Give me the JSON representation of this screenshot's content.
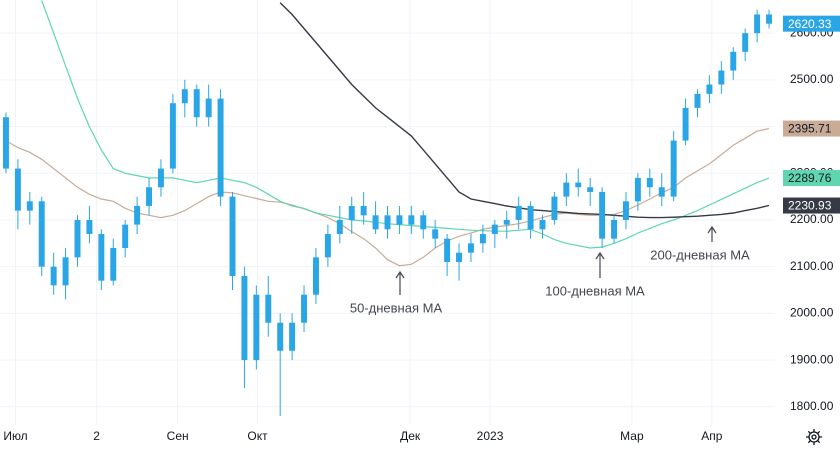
{
  "chart_data": {
    "type": "candlestick",
    "x": [
      0,
      1,
      2,
      3,
      4,
      5,
      6,
      7,
      8,
      9,
      10,
      11,
      12,
      13,
      14,
      15,
      16,
      17,
      18,
      19,
      20,
      21,
      22,
      23,
      24,
      25,
      26,
      27,
      28,
      29,
      30,
      31,
      32,
      33,
      34,
      35,
      36,
      37,
      38,
      39,
      40,
      41,
      42,
      43,
      44,
      45,
      46,
      47,
      48,
      49,
      50,
      51,
      52,
      53,
      54,
      55,
      56,
      57,
      58,
      59,
      60,
      61,
      62,
      63,
      64
    ],
    "candles": {
      "color": "#2aa6e6",
      "open": [
        2420,
        2310,
        2220,
        2240,
        2100,
        2060,
        2120,
        2200,
        2170,
        2070,
        2140,
        2190,
        2230,
        2270,
        2310,
        2450,
        2480,
        2420,
        2460,
        2250,
        2080,
        1900,
        2040,
        1980,
        1920,
        1980,
        2040,
        2120,
        2170,
        2200,
        2230,
        2210,
        2180,
        2210,
        2190,
        2210,
        2180,
        2160,
        2110,
        2130,
        2150,
        2170,
        2190,
        2200,
        2230,
        2180,
        2200,
        2250,
        2280,
        2270,
        2260,
        2160,
        2200,
        2240,
        2290,
        2270,
        2250,
        2370,
        2440,
        2470,
        2490,
        2520,
        2560,
        2600,
        2640
      ],
      "high": [
        2430,
        2330,
        2260,
        2250,
        2130,
        2140,
        2210,
        2230,
        2180,
        2160,
        2200,
        2250,
        2290,
        2330,
        2470,
        2500,
        2490,
        2490,
        2480,
        2260,
        2100,
        2060,
        2080,
        2000,
        2000,
        2060,
        2140,
        2190,
        2230,
        2250,
        2260,
        2240,
        2230,
        2230,
        2230,
        2220,
        2200,
        2170,
        2150,
        2170,
        2190,
        2200,
        2220,
        2250,
        2240,
        2210,
        2260,
        2300,
        2310,
        2290,
        2270,
        2210,
        2260,
        2300,
        2310,
        2300,
        2390,
        2460,
        2480,
        2510,
        2540,
        2570,
        2610,
        2650,
        2650
      ],
      "low": [
        2300,
        2180,
        2190,
        2080,
        2040,
        2030,
        2100,
        2150,
        2050,
        2060,
        2120,
        2170,
        2210,
        2250,
        2300,
        2420,
        2400,
        2400,
        2230,
        2050,
        1840,
        1880,
        1950,
        1780,
        1900,
        1960,
        2020,
        2100,
        2150,
        2170,
        2190,
        2170,
        2160,
        2170,
        2170,
        2160,
        2140,
        2080,
        2070,
        2110,
        2130,
        2140,
        2160,
        2180,
        2160,
        2160,
        2190,
        2230,
        2250,
        2230,
        2140,
        2150,
        2180,
        2220,
        2250,
        2230,
        2240,
        2360,
        2420,
        2450,
        2470,
        2500,
        2540,
        2580,
        2610
      ],
      "close": [
        2310,
        2220,
        2240,
        2100,
        2060,
        2120,
        2200,
        2170,
        2070,
        2140,
        2190,
        2230,
        2270,
        2310,
        2450,
        2480,
        2420,
        2460,
        2250,
        2080,
        1900,
        2040,
        1980,
        1920,
        1980,
        2040,
        2120,
        2170,
        2200,
        2230,
        2210,
        2180,
        2210,
        2190,
        2210,
        2180,
        2160,
        2110,
        2130,
        2150,
        2170,
        2190,
        2200,
        2230,
        2180,
        2200,
        2250,
        2280,
        2270,
        2260,
        2160,
        2200,
        2240,
        2290,
        2270,
        2250,
        2370,
        2440,
        2470,
        2490,
        2520,
        2560,
        2600,
        2640,
        2620.33
      ]
    },
    "moving_averages": [
      {
        "name": "50-дневная MA",
        "color": "#c9ab96",
        "values": [
          2370,
          2355,
          2345,
          2330,
          2310,
          2290,
          2270,
          2255,
          2245,
          2240,
          2225,
          2215,
          2210,
          2205,
          2210,
          2220,
          2235,
          2250,
          2260,
          2258,
          2252,
          2246,
          2240,
          2238,
          2232,
          2224,
          2215,
          2205,
          2192,
          2175,
          2160,
          2140,
          2115,
          2102,
          2105,
          2120,
          2140,
          2155,
          2165,
          2172,
          2180,
          2185,
          2188,
          2192,
          2198,
          2205,
          2212,
          2215,
          2212,
          2210,
          2210,
          2212,
          2220,
          2232,
          2245,
          2258,
          2270,
          2290,
          2305,
          2320,
          2340,
          2360,
          2375,
          2390,
          2395.71
        ]
      },
      {
        "name": "100-дневная MA",
        "color": "#5fd6b0",
        "values": [
          null,
          null,
          null,
          2670,
          2600,
          2530,
          2460,
          2400,
          2350,
          2310,
          2300,
          2295,
          2290,
          2290,
          2290,
          2285,
          2280,
          2285,
          2290,
          2285,
          2280,
          2270,
          2255,
          2240,
          2230,
          2225,
          2215,
          2210,
          2205,
          2200,
          2198,
          2195,
          2192,
          2190,
          2188,
          2186,
          2184,
          2182,
          2180,
          2178,
          2177,
          2176,
          2176,
          2178,
          2180,
          2170,
          2158,
          2150,
          2145,
          2140,
          2142,
          2150,
          2160,
          2172,
          2182,
          2192,
          2200,
          2210,
          2220,
          2232,
          2244,
          2256,
          2268,
          2280,
          2289.76
        ]
      },
      {
        "name": "200-дневная MA",
        "color": "#363a45",
        "values": [
          null,
          null,
          null,
          null,
          null,
          null,
          null,
          null,
          null,
          null,
          null,
          null,
          null,
          null,
          null,
          null,
          null,
          null,
          null,
          null,
          null,
          null,
          null,
          2665,
          2640,
          2610,
          2580,
          2550,
          2520,
          2490,
          2465,
          2440,
          2420,
          2400,
          2380,
          2350,
          2320,
          2290,
          2260,
          2245,
          2240,
          2235,
          2230,
          2226,
          2222,
          2220,
          2218,
          2216,
          2214,
          2213,
          2212,
          2210,
          2208,
          2206,
          2205,
          2205,
          2206,
          2207,
          2208,
          2210,
          2212,
          2215,
          2220,
          2225,
          2230.93
        ]
      }
    ],
    "xlim": [
      -0.5,
      64.5
    ],
    "xticks": [
      {
        "value": 0.8,
        "label": "Июл"
      },
      {
        "value": 7.6,
        "label": "2"
      },
      {
        "value": 14.4,
        "label": "Сен"
      },
      {
        "value": 21.1,
        "label": "Окт"
      },
      {
        "value": 33.9,
        "label": "Дек"
      },
      {
        "value": 40.6,
        "label": "2023"
      },
      {
        "value": 52.5,
        "label": "Мар"
      },
      {
        "value": 59.2,
        "label": "Апр"
      }
    ],
    "ylim": [
      1761,
      2671
    ],
    "yticks": [
      {
        "value": 1800,
        "label": "1800.00"
      },
      {
        "value": 1900,
        "label": "1900.00"
      },
      {
        "value": 2000,
        "label": "2000.00"
      },
      {
        "value": 2100,
        "label": "2100.00"
      },
      {
        "value": 2200,
        "label": "2200.00"
      },
      {
        "value": 2300,
        "label": "2300.00"
      },
      {
        "value": 2400,
        "label": "2400.00"
      },
      {
        "value": 2500,
        "label": "2500.00"
      },
      {
        "value": 2600,
        "label": "2600.00"
      }
    ],
    "grid": true
  }
}
